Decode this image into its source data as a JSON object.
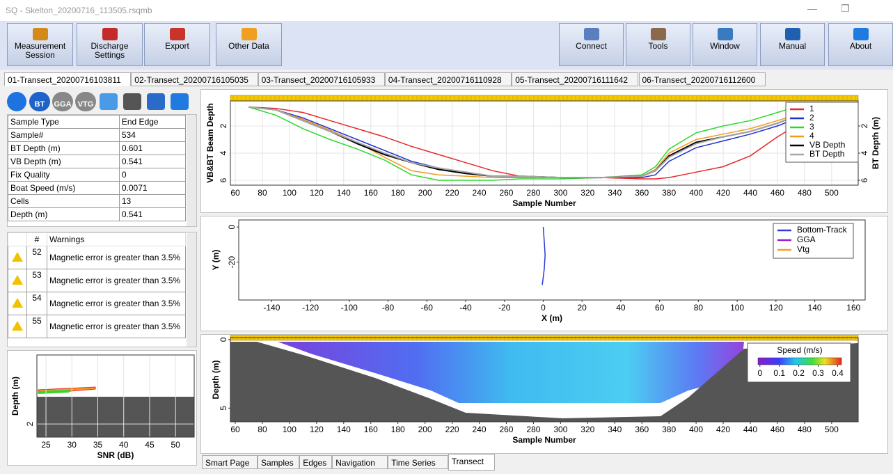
{
  "window": {
    "title": "SQ - Skelton_20200716_113505.rsqmb"
  },
  "toolbar": {
    "left": [
      "Measurement Session",
      "Discharge Settings",
      "Export",
      "Other Data"
    ],
    "right": [
      "Connect",
      "Tools",
      "Window",
      "Manual",
      "About"
    ]
  },
  "transect_tabs": [
    "01-Transect_20200716103811",
    "02-Transect_20200716105035",
    "03-Transect_20200716105933",
    "04-Transect_20200716110928",
    "05-Transect_20200716111642",
    "06-Transect_20200716112600"
  ],
  "status_icons": [
    "BT",
    "GGA",
    "VTG"
  ],
  "sample_table": {
    "rows": [
      [
        "Sample Type",
        "End Edge"
      ],
      [
        "Sample#",
        "534"
      ],
      [
        "BT Depth (m)",
        "0.601"
      ],
      [
        "VB Depth (m)",
        "0.541"
      ],
      [
        "Fix Quality",
        "0"
      ],
      [
        "Boat Speed (m/s)",
        "0.0071"
      ],
      [
        "Cells",
        "13"
      ],
      [
        "Depth (m)",
        "0.541"
      ]
    ]
  },
  "warnings": {
    "header": [
      "#",
      "Warnings"
    ],
    "rows": [
      [
        "52",
        "Magnetic error is greater than 3.5%"
      ],
      [
        "53",
        "Magnetic error is greater than 3.5%"
      ],
      [
        "54",
        "Magnetic error is greater than 3.5%"
      ],
      [
        "55",
        "Magnetic error is greater than 3.5%"
      ]
    ]
  },
  "snr_plot": {
    "x_label": "SNR (dB)",
    "y_label": "Depth (m)",
    "xlim": [
      23.25,
      53.6
    ],
    "xticks": [
      25,
      30,
      35,
      40,
      45,
      50
    ],
    "ylim": [
      -0.1,
      2.4
    ],
    "yticks": [
      2
    ],
    "y_inverted": true,
    "grid": true
  },
  "depth_plot": {
    "x_label": "Sample Number",
    "y_label": "VB&BT Beam Depth",
    "y2_label": "BT Depth (m)",
    "grid": true,
    "y_inverted": true,
    "legend": "upper right",
    "xlim": [
      56.4,
      519.6
    ],
    "xticks": [
      60,
      80,
      100,
      120,
      140,
      160,
      180,
      200,
      220,
      240,
      260,
      280,
      300,
      320,
      340,
      360,
      380,
      400,
      420,
      440,
      460,
      480,
      500
    ],
    "ylim": [
      0.15,
      6.36
    ],
    "yticks": [
      2,
      4,
      6
    ],
    "y2lim": [
      0.15,
      6.36
    ],
    "y2ticks": [
      2,
      4,
      6
    ],
    "x": [
      70,
      90,
      110,
      130,
      150,
      170,
      190,
      210,
      230,
      250,
      270,
      300,
      330,
      360,
      370,
      380,
      400,
      420,
      440,
      460,
      470
    ],
    "series": [
      {
        "name": "1",
        "color": "#e8262a",
        "values": [
          0.6,
          0.7,
          1.0,
          1.6,
          2.2,
          2.8,
          3.5,
          4.1,
          4.7,
          5.3,
          5.7,
          5.8,
          5.8,
          5.9,
          5.9,
          5.8,
          5.4,
          5.0,
          4.2,
          2.8,
          2.2
        ]
      },
      {
        "name": "2",
        "color": "#1f2fd0",
        "values": [
          0.6,
          0.8,
          1.4,
          2.2,
          3.0,
          3.8,
          4.6,
          5.1,
          5.4,
          5.7,
          5.8,
          5.8,
          5.8,
          5.8,
          5.6,
          4.6,
          3.6,
          3.1,
          2.6,
          2.0,
          1.6
        ]
      },
      {
        "name": "3",
        "color": "#2fd82f",
        "values": [
          0.6,
          1.2,
          2.2,
          3.0,
          3.7,
          4.5,
          5.6,
          6.0,
          6.0,
          6.0,
          5.9,
          5.9,
          5.8,
          5.6,
          5.0,
          3.7,
          2.5,
          2.0,
          1.6,
          1.0,
          0.7
        ]
      },
      {
        "name": "4",
        "color": "#f39a1e",
        "values": [
          0.6,
          0.8,
          1.5,
          2.3,
          3.2,
          4.3,
          5.3,
          5.6,
          5.7,
          5.8,
          5.8,
          5.8,
          5.8,
          5.7,
          5.2,
          4.0,
          3.0,
          2.6,
          2.2,
          1.6,
          1.3
        ]
      },
      {
        "name": "VB Depth",
        "color": "#000000",
        "values": [
          0.6,
          0.8,
          1.6,
          2.4,
          3.3,
          4.1,
          4.7,
          5.2,
          5.5,
          5.7,
          5.7,
          5.8,
          5.8,
          5.7,
          5.3,
          4.2,
          3.2,
          2.8,
          2.4,
          1.8,
          1.4
        ]
      },
      {
        "name": "BT Depth",
        "color": "#a6a6a6",
        "values": [
          0.6,
          0.8,
          1.6,
          2.4,
          3.2,
          4.0,
          4.7,
          5.1,
          5.4,
          5.7,
          5.7,
          5.8,
          5.8,
          5.7,
          5.3,
          4.3,
          3.3,
          2.8,
          2.4,
          1.8,
          1.4
        ]
      }
    ]
  },
  "track_plot": {
    "type": "line",
    "x_label": "X (m)",
    "y_label": "Y (m)",
    "grid": false,
    "legend": "upper right",
    "xlim": [
      -157,
      166
    ],
    "xticks": [
      -140,
      -120,
      -100,
      -80,
      -60,
      -40,
      -20,
      0,
      20,
      40,
      60,
      80,
      100,
      120,
      140,
      160
    ],
    "ylim": [
      -41.5,
      4
    ],
    "yticks": [
      0,
      -20
    ],
    "series": [
      {
        "name": "Bottom-Track",
        "color": "#2a3bd6",
        "x": [
          0,
          0.5,
          1,
          0.5,
          -0.5
        ],
        "values": [
          0,
          -8,
          -16,
          -24,
          -33
        ]
      },
      {
        "name": "GGA",
        "color": "#9b1fc7"
      },
      {
        "name": "Vtg",
        "color": "#f5a31a"
      }
    ]
  },
  "contour_plot": {
    "x_label": "Sample Number",
    "y_label": "Depth (m)",
    "y_inverted": true,
    "grid": false,
    "xlim": [
      56.4,
      519.6
    ],
    "xticks": [
      60,
      80,
      100,
      120,
      140,
      160,
      180,
      200,
      220,
      240,
      260,
      280,
      300,
      320,
      340,
      360,
      380,
      400,
      420,
      440,
      460,
      480,
      500
    ],
    "ylim": [
      -0.15,
      6.0
    ],
    "yticks": [
      0,
      5
    ],
    "colorbar": {
      "title": "Speed (m/s)",
      "lim": [
        -0.01,
        0.42
      ],
      "ticks": [
        0,
        0.1,
        0.2,
        0.3,
        0.4
      ]
    }
  },
  "view_tabs": [
    "Smart Page",
    "Samples",
    "Edges",
    "Navigation",
    "Time Series",
    "Transect"
  ]
}
